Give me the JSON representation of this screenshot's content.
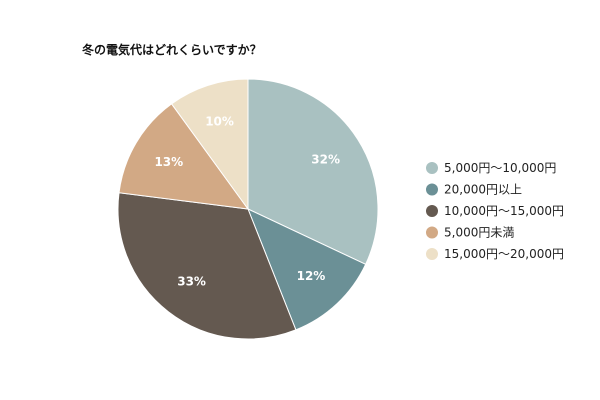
{
  "chart_data": {
    "type": "pie",
    "title": "冬の電気代はどれくらいですか？",
    "categories": [
      "5,000円～10,000円",
      "20,000円以上",
      "10,000円～15,000円",
      "5,000円未満",
      "15,000円～20,000円"
    ],
    "values": [
      32,
      12,
      33,
      13,
      10
    ],
    "value_labels": [
      "32%",
      "12%",
      "33%",
      "13%",
      "10%"
    ],
    "colors": [
      "#a9c1c1",
      "#6b9096",
      "#645950",
      "#d2a985",
      "#ede0c7"
    ],
    "start": "top, clockwise",
    "legend": "right"
  }
}
